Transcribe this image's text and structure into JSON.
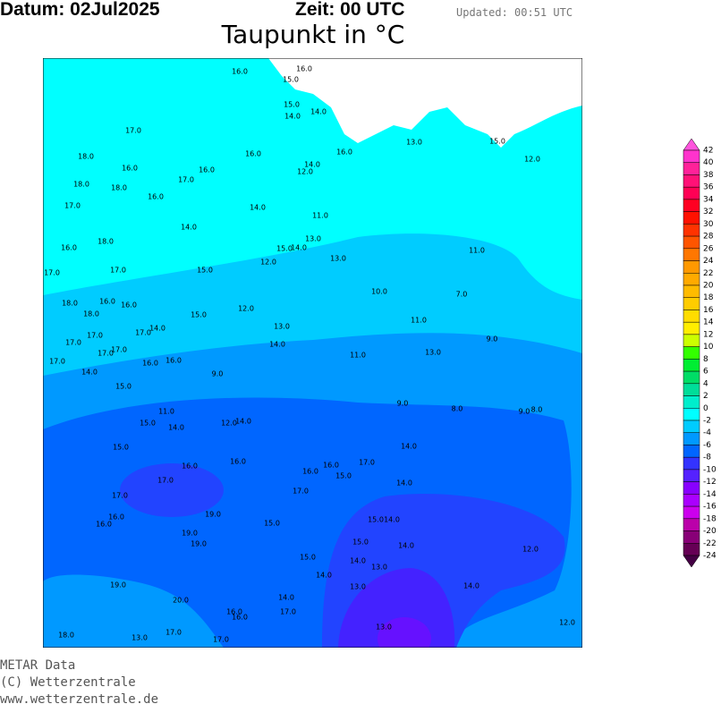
{
  "header": {
    "date": "Datum: 02Jul2025",
    "time": "Zeit: 00 UTC",
    "updated": "Updated: 00:51 UTC",
    "title": "Taupunkt in °C"
  },
  "stations": [
    "16.0",
    "16.0",
    "15.0",
    "15.0",
    "14.0",
    "14.0",
    "17.0",
    "13.0",
    "15.0",
    "18.0",
    "16.0",
    "16.0",
    "16.0",
    "16.0",
    "14.0",
    "12.0",
    "12.0",
    "18.0",
    "18.0",
    "17.0",
    "16.0",
    "17.0",
    "14.0",
    "11.0",
    "18.0",
    "14.0",
    "13.0",
    "16.0",
    "15.0",
    "14.0",
    "11.0",
    "13.0",
    "12.0",
    "17.0",
    "17.0",
    "15.0",
    "10.0",
    "7.0",
    "18.0",
    "16.0",
    "16.0",
    "18.0",
    "12.0",
    "15.0",
    "11.0",
    "14.0",
    "17.0",
    "13.0",
    "17.0",
    "17.0",
    "9.0",
    "14.0",
    "17.0",
    "17.0",
    "11.0",
    "13.0",
    "17.0",
    "16.0",
    "16.0",
    "14.0",
    "9.0",
    "15.0",
    "9.0",
    "8.0",
    "9.0",
    "8.0",
    "11.0",
    "15.0",
    "14.0",
    "12.0",
    "14.0",
    "14.0",
    "15.0",
    "16.0",
    "16.0",
    "16.0",
    "16.0",
    "17.0",
    "15.0",
    "17.0",
    "14.0",
    "17.0",
    "17.0",
    "19.0",
    "16.0",
    "16.0",
    "15.0",
    "15.0",
    "14.0",
    "19.0",
    "19.0",
    "15.0",
    "14.0",
    "12.0",
    "15.0",
    "14.0",
    "13.0",
    "14.0",
    "19.0",
    "13.0",
    "14.0",
    "14.0",
    "20.0",
    "16.0",
    "16.0",
    "17.0",
    "12.0",
    "13.0",
    "18.0",
    "13.0",
    "17.0",
    "17.0"
  ],
  "colorbar": {
    "labels": [
      42,
      40,
      38,
      36,
      34,
      32,
      30,
      28,
      26,
      24,
      22,
      20,
      18,
      16,
      14,
      12,
      10,
      8,
      6,
      4,
      2,
      0,
      -2,
      -4,
      -6,
      -8,
      -10,
      -12,
      -14,
      -16,
      -18,
      -20,
      -22,
      -24
    ],
    "colors": [
      "#ff55dd",
      "#ff33cc",
      "#ff2299",
      "#ff1177",
      "#ff0055",
      "#ff0022",
      "#ff1100",
      "#ff3300",
      "#ff5500",
      "#ff7700",
      "#ff9900",
      "#ffaa00",
      "#ffbb00",
      "#ffcc00",
      "#ffdd00",
      "#ffee00",
      "#ccff00",
      "#33ff00",
      "#00ee33",
      "#00dd66",
      "#00dd99",
      "#00eecc",
      "#00ffff",
      "#00ccff",
      "#0099ff",
      "#0066ff",
      "#3333ff",
      "#5522ff",
      "#8800ff",
      "#aa00ff",
      "#cc00ee",
      "#bb00aa",
      "#880077",
      "#660055",
      "#440044"
    ]
  },
  "footer": [
    "METAR Data",
    "(C) Wetterzentrale",
    "www.wetterzentrale.de"
  ]
}
